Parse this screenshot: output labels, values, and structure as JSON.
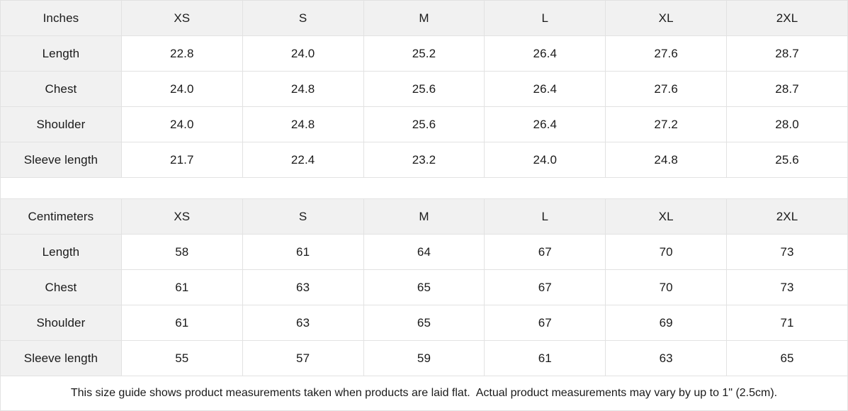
{
  "tables": [
    {
      "unit": "Inches",
      "sizes": [
        "XS",
        "S",
        "M",
        "L",
        "XL",
        "2XL"
      ],
      "rows": [
        {
          "label": "Length",
          "values": [
            "22.8",
            "24.0",
            "25.2",
            "26.4",
            "27.6",
            "28.7"
          ]
        },
        {
          "label": "Chest",
          "values": [
            "24.0",
            "24.8",
            "25.6",
            "26.4",
            "27.6",
            "28.7"
          ]
        },
        {
          "label": "Shoulder",
          "values": [
            "24.0",
            "24.8",
            "25.6",
            "26.4",
            "27.2",
            "28.0"
          ]
        },
        {
          "label": "Sleeve length",
          "values": [
            "21.7",
            "22.4",
            "23.2",
            "24.0",
            "24.8",
            "25.6"
          ]
        }
      ]
    },
    {
      "unit": "Centimeters",
      "sizes": [
        "XS",
        "S",
        "M",
        "L",
        "XL",
        "2XL"
      ],
      "rows": [
        {
          "label": "Length",
          "values": [
            "58",
            "61",
            "64",
            "67",
            "70",
            "73"
          ]
        },
        {
          "label": "Chest",
          "values": [
            "61",
            "63",
            "65",
            "67",
            "70",
            "73"
          ]
        },
        {
          "label": "Shoulder",
          "values": [
            "61",
            "63",
            "65",
            "67",
            "69",
            "71"
          ]
        },
        {
          "label": "Sleeve length",
          "values": [
            "55",
            "57",
            "59",
            "61",
            "63",
            "65"
          ]
        }
      ]
    }
  ],
  "footer": {
    "note": "This size guide shows product measurements taken when products are laid flat.  Actual product measurements may vary by up to 1\" (2.5cm)."
  },
  "colors": {
    "header_bg": "#f1f1f1",
    "border": "#e2e2e2",
    "text": "#1a1a1a",
    "background": "#ffffff"
  }
}
